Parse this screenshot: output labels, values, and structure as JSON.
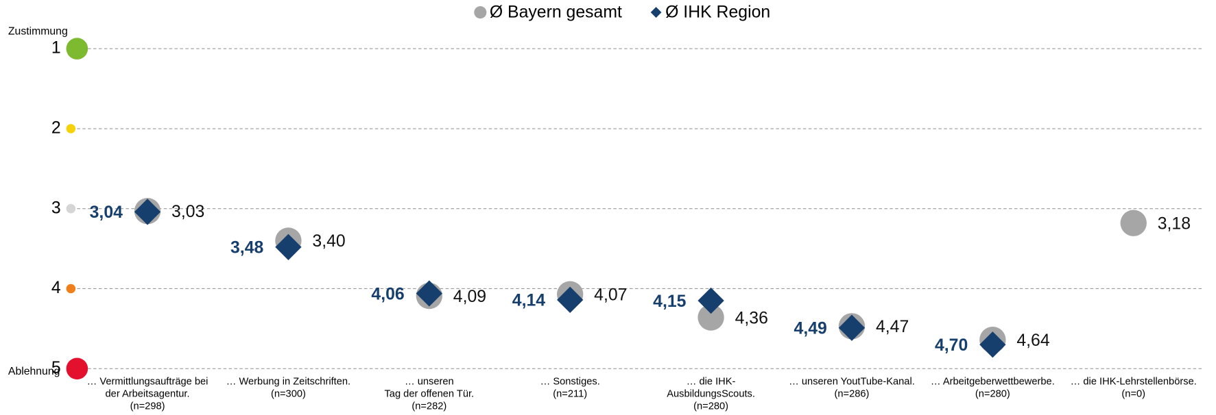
{
  "chart_data": {
    "type": "scatter",
    "y_top_label": "Zustimmung",
    "y_bottom_label": "Ablehnung",
    "categories": [
      [
        "… Vermittlungsaufträge bei",
        "der Arbeitsagentur.",
        "(n=298)"
      ],
      [
        "… Werbung in Zeitschriften.",
        "(n=300)"
      ],
      [
        "… unseren",
        "Tag der offenen Tür.",
        "(n=282)"
      ],
      [
        "… Sonstiges.",
        "(n=211)"
      ],
      [
        "… die IHK-",
        "AusbildungsScouts.",
        "(n=280)"
      ],
      [
        "… unseren YoutTube-Kanal.",
        "(n=286)"
      ],
      [
        "… Arbeitgeberwettbewerbe.",
        "(n=280)"
      ],
      [
        "… die IHK-Lehrstellenbörse.",
        "(n=0)"
      ]
    ],
    "series": [
      {
        "name": "Ø Bayern gesamt",
        "color": "#a6a6a6",
        "marker": "circle",
        "values": [
          3.03,
          3.4,
          4.09,
          4.07,
          4.36,
          4.47,
          4.64,
          3.18
        ],
        "value_labels": [
          "3,03",
          "3,40",
          "4,09",
          "4,07",
          "4,36",
          "4,47",
          "4,64",
          "3,18"
        ]
      },
      {
        "name": "Ø IHK Region",
        "color": "#173f6e",
        "marker": "diamond",
        "values": [
          3.04,
          3.48,
          4.06,
          4.14,
          4.15,
          4.49,
          4.7,
          null
        ],
        "value_labels": [
          "3,04",
          "3,48",
          "4,06",
          "4,14",
          "4,15",
          "4,49",
          "4,70",
          null
        ]
      }
    ],
    "ylim": [
      1,
      5
    ],
    "yticks": [
      1,
      2,
      3,
      4,
      5
    ],
    "y_reversed": true,
    "grid": true
  }
}
